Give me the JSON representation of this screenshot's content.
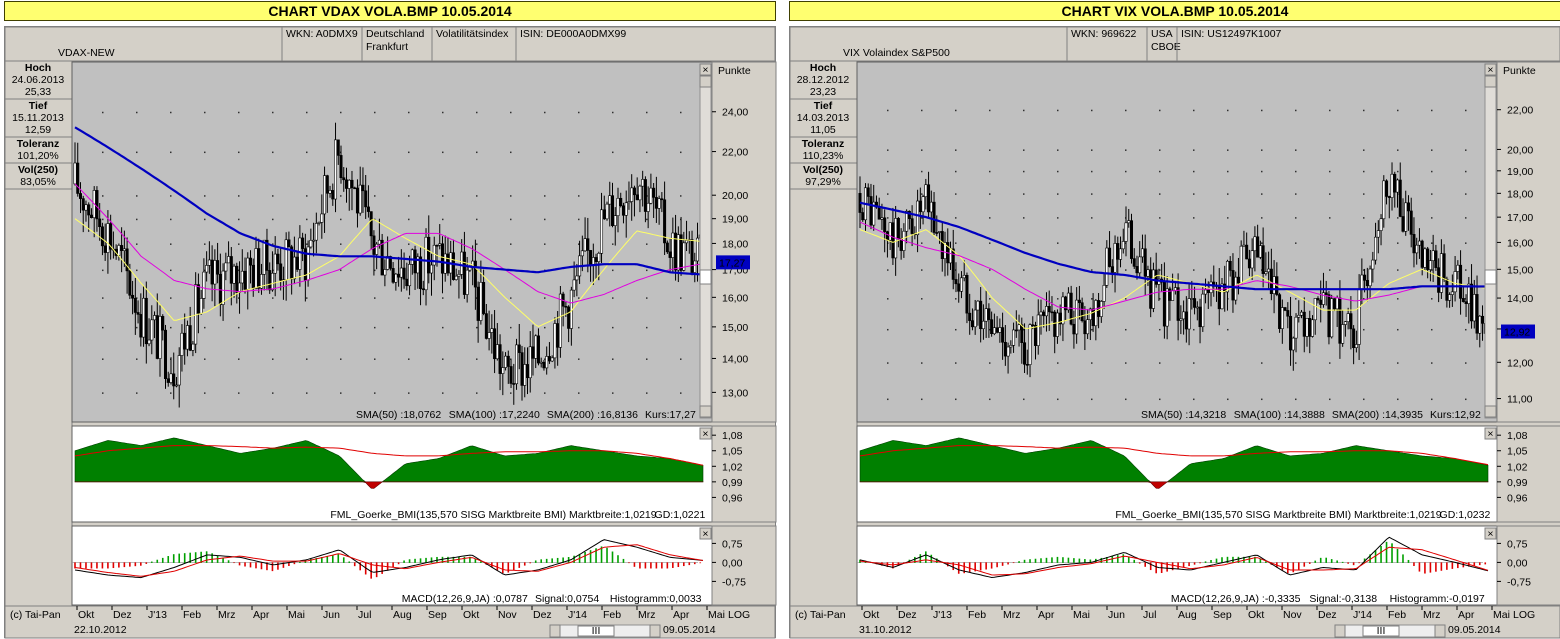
{
  "panels": [
    {
      "window_title": "CHART  VDAX  VOLA.BMP 10.05.2014",
      "name": "VDAX-NEW",
      "wkn": "WKN: A0DMX9",
      "exchange": [
        "Deutschland",
        "Frankfurt"
      ],
      "category": "Volatilitätsindex",
      "isin": "ISIN: DE000A0DMX99",
      "stats": [
        {
          "label": "Hoch",
          "lines": [
            "24.06.2013",
            "25,33"
          ]
        },
        {
          "label": "Tief",
          "lines": [
            "15.11.2013",
            "12,59"
          ]
        },
        {
          "label": "Toleranz",
          "lines": [
            "101,20%"
          ]
        },
        {
          "label": "Vol(250)",
          "lines": [
            "83,05%"
          ]
        }
      ],
      "unit_label": "Punkte",
      "last_label": "17,27",
      "price_ticks": [
        {
          "label": "24,00",
          "v": 24
        },
        {
          "label": "22,00",
          "v": 22
        },
        {
          "label": "20,00",
          "v": 20
        },
        {
          "label": "19,00",
          "v": 19
        },
        {
          "label": "18,00",
          "v": 18
        },
        {
          "label": "17,00",
          "v": 17
        },
        {
          "label": "16,00",
          "v": 16
        },
        {
          "label": "15,00",
          "v": 15
        },
        {
          "label": "14,00",
          "v": 14
        },
        {
          "label": "13,00",
          "v": 13
        }
      ],
      "legend": [
        {
          "text": "SMA(50) :18,0762",
          "color": "#e8e800"
        },
        {
          "text": "SMA(100) :17,2240",
          "color": "#e000e0"
        },
        {
          "text": "SMA(200) :16,8136",
          "color": "#0000c0"
        },
        {
          "text": "Kurs:17,27",
          "color": "#000000"
        }
      ],
      "bmi_ticks": [
        {
          "label": "1,08",
          "v": 1.08
        },
        {
          "label": "1,05",
          "v": 1.05
        },
        {
          "label": "1,02",
          "v": 1.02
        },
        {
          "label": "0,99",
          "v": 0.99
        },
        {
          "label": "0,96",
          "v": 0.96
        }
      ],
      "bmi_legend": [
        {
          "text": "FML_Goerke_BMI(135,570 SISG Marktbreite BMI) Marktbreite:1,0219",
          "color": "#007000"
        },
        {
          "text": "GD:1,0221",
          "color": "#e00000"
        }
      ],
      "macd_ticks": [
        {
          "label": "0,75",
          "v": 0.75
        },
        {
          "label": "0,00",
          "v": 0
        },
        {
          "label": "-0,75",
          "v": -0.75
        }
      ],
      "macd_legend": [
        {
          "text": "MACD(12,26,9,JA) :0,0787",
          "color": "#000000"
        },
        {
          "text": "Signal:0,0754",
          "color": "#e00000"
        },
        {
          "text": "Histogramm:0,0033",
          "color": "#007000"
        }
      ],
      "months": [
        "Okt",
        "Dez",
        "J'13",
        "Feb",
        "Mrz",
        "Apr",
        "Mai",
        "Jun",
        "Jul",
        "Aug",
        "Sep",
        "Okt",
        "Nov",
        "Dez",
        "J'14",
        "Feb",
        "Mrz",
        "Apr",
        "Mai"
      ],
      "copyright": "(c) Tai-Pan",
      "start_date": "22.10.2012",
      "end_date": "09.05.2014",
      "scale": "LOG",
      "scroll_grip": "III"
    },
    {
      "window_title": "CHART  VIX  VOLA.BMP 10.05.2014",
      "name": "VIX Volaindex S&P500",
      "wkn": "WKN: 969622",
      "exchange": [
        "USA",
        "CBOE"
      ],
      "category": "",
      "isin": "ISIN: US12497K1007",
      "stats": [
        {
          "label": "Hoch",
          "lines": [
            "28.12.2012",
            "23,23"
          ]
        },
        {
          "label": "Tief",
          "lines": [
            "14.03.2013",
            "11,05"
          ]
        },
        {
          "label": "Toleranz",
          "lines": [
            "110,23%"
          ]
        },
        {
          "label": "Vol(250)",
          "lines": [
            "97,29%"
          ]
        }
      ],
      "unit_label": "Punkte",
      "last_label": "12,92",
      "price_ticks": [
        {
          "label": "22,00",
          "v": 22
        },
        {
          "label": "20,00",
          "v": 20
        },
        {
          "label": "19,00",
          "v": 19
        },
        {
          "label": "18,00",
          "v": 18
        },
        {
          "label": "17,00",
          "v": 17
        },
        {
          "label": "16,00",
          "v": 16
        },
        {
          "label": "15,00",
          "v": 15
        },
        {
          "label": "14,00",
          "v": 14
        },
        {
          "label": "13,00",
          "v": 13
        },
        {
          "label": "12,00",
          "v": 12
        },
        {
          "label": "11,00",
          "v": 11
        }
      ],
      "legend": [
        {
          "text": "SMA(50) :14,3218",
          "color": "#e8e800"
        },
        {
          "text": "SMA(100) :14,3888",
          "color": "#e000e0"
        },
        {
          "text": "SMA(200) :14,3935",
          "color": "#0000c0"
        },
        {
          "text": "Kurs:12,92",
          "color": "#000000"
        }
      ],
      "bmi_ticks": [
        {
          "label": "1,08",
          "v": 1.08
        },
        {
          "label": "1,05",
          "v": 1.05
        },
        {
          "label": "1,02",
          "v": 1.02
        },
        {
          "label": "0,99",
          "v": 0.99
        },
        {
          "label": "0,96",
          "v": 0.96
        }
      ],
      "bmi_legend": [
        {
          "text": "FML_Goerke_BMI(135,570 SISG Marktbreite BMI) Marktbreite:1,0219",
          "color": "#007000"
        },
        {
          "text": "GD:1,0232",
          "color": "#e00000"
        }
      ],
      "macd_ticks": [
        {
          "label": "0,75",
          "v": 0.75
        },
        {
          "label": "0,00",
          "v": 0
        },
        {
          "label": "-0,75",
          "v": -0.75
        }
      ],
      "macd_legend": [
        {
          "text": "MACD(12,26,9,JA) :-0,3335",
          "color": "#000000"
        },
        {
          "text": "Signal:-0,3138",
          "color": "#e00000"
        },
        {
          "text": "Histogramm:-0,0197",
          "color": "#007000"
        }
      ],
      "months": [
        "Okt",
        "Dez",
        "J'13",
        "Feb",
        "Mrz",
        "Apr",
        "Mai",
        "Jun",
        "Jul",
        "Aug",
        "Sep",
        "Okt",
        "Nov",
        "Dez",
        "J'14",
        "Feb",
        "Mrz",
        "Apr",
        "Mai"
      ],
      "copyright": "(c) Tai-Pan",
      "start_date": "31.10.2012",
      "end_date": "09.05.2014",
      "scale": "LOG",
      "scroll_grip": "III"
    }
  ],
  "chart_data": [
    {
      "type": "line",
      "title": "VDAX-NEW",
      "ylabel": "Punkte",
      "scale": "log",
      "ylim": [
        12.4,
        25.5
      ],
      "x": [
        "Okt",
        "Nov",
        "Dez",
        "J'13",
        "Feb",
        "Mrz",
        "Apr",
        "Mai",
        "Jun",
        "Jul",
        "Aug",
        "Sep",
        "Okt",
        "Nov",
        "Dez",
        "J'14",
        "Feb",
        "Mrz",
        "Apr",
        "Mai"
      ],
      "series": [
        {
          "name": "Kurs",
          "values": [
            20.5,
            18.5,
            15.5,
            13.8,
            16.5,
            17.0,
            17.2,
            17.5,
            22.0,
            18.0,
            17.0,
            17.5,
            16.5,
            13.5,
            14.0,
            16.0,
            19.0,
            21.0,
            18.0,
            17.27
          ]
        },
        {
          "name": "SMA(50)",
          "values": [
            19.0,
            18.0,
            16.5,
            15.2,
            15.5,
            16.2,
            16.5,
            16.8,
            17.5,
            19.0,
            18.2,
            17.5,
            17.2,
            16.0,
            15.0,
            15.5,
            17.0,
            18.5,
            18.2,
            18.0762
          ]
        },
        {
          "name": "SMA(100)",
          "values": [
            20.5,
            19.0,
            17.5,
            16.6,
            16.3,
            16.2,
            16.3,
            16.6,
            17.0,
            17.8,
            18.4,
            18.4,
            17.8,
            17.0,
            16.2,
            15.8,
            16.1,
            16.6,
            17.0,
            17.224
          ]
        },
        {
          "name": "SMA(200)",
          "values": [
            23.2,
            22.2,
            21.2,
            20.2,
            19.2,
            18.4,
            17.9,
            17.6,
            17.5,
            17.5,
            17.4,
            17.3,
            17.1,
            17.0,
            16.9,
            17.1,
            17.2,
            17.2,
            16.9,
            16.8136
          ]
        }
      ],
      "bmi": {
        "name": "FML_Goerke_BMI",
        "ylim": [
          0.955,
          1.09
        ],
        "values": [
          1.05,
          1.07,
          1.06,
          1.075,
          1.06,
          1.045,
          1.055,
          1.07,
          1.04,
          0.975,
          1.025,
          1.035,
          1.06,
          1.04,
          1.045,
          1.06,
          1.05,
          1.04,
          1.035,
          1.0219
        ]
      },
      "bmi_gd": {
        "name": "GD",
        "values": [
          1.04,
          1.05,
          1.055,
          1.06,
          1.06,
          1.058,
          1.055,
          1.057,
          1.055,
          1.045,
          1.04,
          1.04,
          1.045,
          1.048,
          1.048,
          1.05,
          1.05,
          1.045,
          1.035,
          1.0221
        ]
      },
      "macd": {
        "ylim": [
          -1.05,
          1.2
        ],
        "values": [
          -0.3,
          -0.5,
          -0.6,
          -0.2,
          0.3,
          0.2,
          -0.1,
          0.1,
          0.5,
          -0.4,
          -0.2,
          0.1,
          0.3,
          -0.5,
          -0.3,
          0.1,
          0.9,
          0.6,
          0.2,
          0.0787
        ]
      },
      "signal": {
        "values": [
          -0.2,
          -0.4,
          -0.55,
          -0.35,
          0.1,
          0.25,
          0.05,
          0.05,
          0.35,
          -0.1,
          -0.25,
          0.0,
          0.2,
          -0.3,
          -0.35,
          0.0,
          0.6,
          0.7,
          0.3,
          0.0754
        ]
      }
    },
    {
      "type": "line",
      "title": "VIX Volaindex S&P500",
      "ylabel": "Punkte",
      "scale": "log",
      "ylim": [
        10.6,
        23.4
      ],
      "x": [
        "Okt",
        "Nov",
        "Dez",
        "J'13",
        "Feb",
        "Mrz",
        "Apr",
        "Mai",
        "Jun",
        "Jul",
        "Aug",
        "Sep",
        "Okt",
        "Nov",
        "Dez",
        "J'14",
        "Feb",
        "Mrz",
        "Apr",
        "Mai"
      ],
      "series": [
        {
          "name": "Kurs",
          "values": [
            18.0,
            16.0,
            17.5,
            14.5,
            13.0,
            12.5,
            13.5,
            13.5,
            16.5,
            14.0,
            13.5,
            14.5,
            15.5,
            12.5,
            13.5,
            13.0,
            19.0,
            15.0,
            14.5,
            12.92
          ]
        },
        {
          "name": "SMA(50)",
          "values": [
            16.5,
            16.0,
            16.5,
            15.5,
            14.0,
            13.0,
            13.2,
            13.5,
            14.0,
            14.8,
            14.5,
            14.2,
            14.8,
            14.2,
            13.6,
            13.6,
            14.5,
            15.0,
            14.5,
            14.3218
          ]
        },
        {
          "name": "SMA(100)",
          "values": [
            16.8,
            16.2,
            15.8,
            15.5,
            15.0,
            14.3,
            13.7,
            13.6,
            13.9,
            14.2,
            14.3,
            14.3,
            14.6,
            14.4,
            14.1,
            13.9,
            14.1,
            14.4,
            14.4,
            14.3888
          ]
        },
        {
          "name": "SMA(200)",
          "values": [
            17.6,
            17.3,
            17.0,
            16.6,
            16.1,
            15.6,
            15.2,
            14.9,
            14.8,
            14.6,
            14.5,
            14.4,
            14.3,
            14.3,
            14.3,
            14.3,
            14.3,
            14.4,
            14.4,
            14.3935
          ]
        }
      ],
      "bmi": {
        "name": "FML_Goerke_BMI",
        "ylim": [
          0.955,
          1.09
        ],
        "values": [
          1.05,
          1.07,
          1.06,
          1.075,
          1.06,
          1.045,
          1.055,
          1.07,
          1.04,
          0.975,
          1.025,
          1.035,
          1.06,
          1.04,
          1.045,
          1.06,
          1.05,
          1.04,
          1.035,
          1.0219
        ]
      },
      "bmi_gd": {
        "name": "GD",
        "values": [
          1.04,
          1.05,
          1.055,
          1.06,
          1.06,
          1.058,
          1.055,
          1.057,
          1.055,
          1.045,
          1.04,
          1.04,
          1.045,
          1.048,
          1.048,
          1.05,
          1.05,
          1.045,
          1.035,
          1.0232
        ]
      },
      "macd": {
        "ylim": [
          -1.05,
          1.2
        ],
        "values": [
          0.1,
          -0.2,
          0.3,
          -0.3,
          -0.6,
          -0.4,
          -0.1,
          0.0,
          0.4,
          -0.2,
          -0.3,
          0.0,
          0.3,
          -0.5,
          -0.2,
          -0.3,
          1.0,
          0.3,
          0.0,
          -0.3335
        ]
      },
      "signal": {
        "values": [
          0.05,
          -0.1,
          0.1,
          -0.1,
          -0.5,
          -0.45,
          -0.2,
          -0.05,
          0.25,
          0.0,
          -0.25,
          -0.1,
          0.2,
          -0.3,
          -0.3,
          -0.25,
          0.6,
          0.5,
          0.1,
          -0.3138
        ]
      }
    }
  ]
}
